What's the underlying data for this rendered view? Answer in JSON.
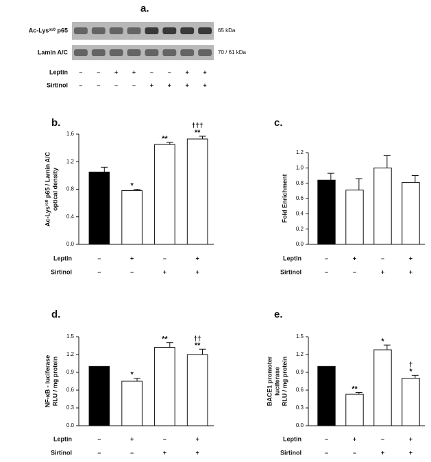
{
  "panel_a": {
    "label": "a.",
    "rows": [
      {
        "label": "Ac-Lys³¹⁰ p65",
        "size": "65 kDa"
      },
      {
        "label": "Lamin A/C",
        "size": "70 / 61 kDa"
      }
    ],
    "conditions": [
      {
        "name": "Leptin",
        "signs": [
          "–",
          "–",
          "+",
          "+",
          "–",
          "–",
          "+",
          "+"
        ]
      },
      {
        "name": "Sirtinol",
        "signs": [
          "–",
          "–",
          "–",
          "–",
          "+",
          "+",
          "+",
          "+"
        ]
      }
    ]
  },
  "chart_data": [
    {
      "type": "bar",
      "label": "b.",
      "ylabel": [
        "Ac-Lys³¹⁰ p65 / Lamin A/C",
        "optical density"
      ],
      "values": [
        1.05,
        0.78,
        1.45,
        1.53
      ],
      "errors": [
        0.07,
        0.02,
        0.03,
        0.04
      ],
      "colors": [
        "#000000",
        "#ffffff",
        "#ffffff",
        "#ffffff"
      ],
      "stars": [
        null,
        "*",
        "**",
        "**"
      ],
      "daggers": [
        null,
        null,
        null,
        "†††"
      ],
      "ylim": [
        0,
        1.6
      ],
      "yticks": [
        {
          "value": 0,
          "label": "0.0"
        },
        0.4,
        0.8,
        1.2,
        1.6
      ],
      "conditions": [
        {
          "name": "Leptin",
          "signs": [
            "–",
            "+",
            "–",
            "+"
          ]
        },
        {
          "name": "Sirtinol",
          "signs": [
            "–",
            "–",
            "+",
            "+"
          ]
        }
      ]
    },
    {
      "type": "bar",
      "label": "c.",
      "ylabel": [
        "Fold Enrichment"
      ],
      "values": [
        0.84,
        0.71,
        1.0,
        0.81
      ],
      "errors": [
        0.09,
        0.15,
        0.16,
        0.09
      ],
      "colors": [
        "#000000",
        "#ffffff",
        "#ffffff",
        "#ffffff"
      ],
      "stars": [
        null,
        null,
        null,
        null
      ],
      "daggers": [
        null,
        null,
        null,
        null
      ],
      "ylim": [
        0,
        1.2
      ],
      "yticks": [
        {
          "value": 0,
          "label": "0.0"
        },
        0.2,
        0.4,
        0.6,
        0.8,
        {
          "value": 1,
          "label": "1.0"
        },
        1.2
      ],
      "conditions": [
        {
          "name": "Leptin",
          "signs": [
            "–",
            "+",
            "–",
            "+"
          ]
        },
        {
          "name": "Sirtinol",
          "signs": [
            "–",
            "–",
            "+",
            "+"
          ]
        }
      ]
    },
    {
      "type": "bar",
      "label": "d.",
      "ylabel": [
        "NF-κB - luciferase",
        "RLU / mg protein"
      ],
      "values": [
        1.0,
        0.75,
        1.32,
        1.2
      ],
      "errors": [
        null,
        0.05,
        0.08,
        0.09
      ],
      "colors": [
        "#000000",
        "#ffffff",
        "#ffffff",
        "#ffffff"
      ],
      "stars": [
        null,
        "*",
        "**",
        "**"
      ],
      "daggers": [
        null,
        null,
        null,
        "††"
      ],
      "ylim": [
        0,
        1.5
      ],
      "yticks": [
        {
          "value": 0,
          "label": "0.0"
        },
        0.3,
        0.6,
        0.9,
        1.2,
        1.5
      ],
      "conditions": [
        {
          "name": "Leptin",
          "signs": [
            "–",
            "+",
            "–",
            "+"
          ]
        },
        {
          "name": "Sirtinol",
          "signs": [
            "–",
            "–",
            "+",
            "+"
          ]
        }
      ]
    },
    {
      "type": "bar",
      "label": "e.",
      "ylabel": [
        "BACE1 promoter",
        "luciferase",
        "RLU / mg protein"
      ],
      "values": [
        1.0,
        0.53,
        1.28,
        0.8
      ],
      "errors": [
        null,
        0.03,
        0.08,
        0.05
      ],
      "colors": [
        "#000000",
        "#ffffff",
        "#ffffff",
        "#ffffff"
      ],
      "stars": [
        null,
        "**",
        "*",
        "*"
      ],
      "daggers": [
        null,
        null,
        null,
        "†"
      ],
      "ylim": [
        0,
        1.5
      ],
      "yticks": [
        {
          "value": 0,
          "label": "0.0"
        },
        0.3,
        0.6,
        0.9,
        1.2,
        1.5
      ],
      "conditions": [
        {
          "name": "Leptin",
          "signs": [
            "–",
            "+",
            "–",
            "+"
          ]
        },
        {
          "name": "Sirtinol",
          "signs": [
            "–",
            "–",
            "+",
            "+"
          ]
        }
      ]
    }
  ]
}
